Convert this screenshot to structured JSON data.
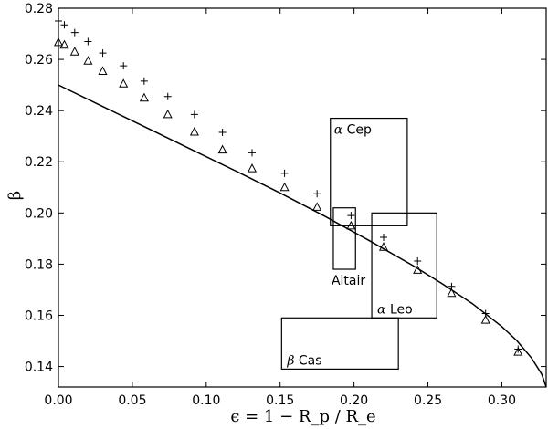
{
  "chart_data": {
    "type": "scatter",
    "title": "",
    "xlabel": "ϵ = 1 − R_p / R_e",
    "ylabel": "β",
    "xlim": [
      0.0,
      0.33
    ],
    "ylim": [
      0.132,
      0.28
    ],
    "x_ticks": [
      0.0,
      0.05,
      0.1,
      0.15,
      0.2,
      0.25,
      0.3
    ],
    "x_tick_labels": [
      "0.00",
      "0.05",
      "0.10",
      "0.15",
      "0.20",
      "0.25",
      "0.30"
    ],
    "y_ticks": [
      0.14,
      0.16,
      0.18,
      0.2,
      0.22,
      0.24,
      0.26,
      0.28
    ],
    "y_tick_labels": [
      "0.14",
      "0.16",
      "0.18",
      "0.20",
      "0.22",
      "0.24",
      "0.26",
      "0.28"
    ],
    "grid": false,
    "series": [
      {
        "marker": "line",
        "color": "#000000",
        "x": [
          0.0,
          0.03,
          0.06,
          0.09,
          0.12,
          0.15,
          0.18,
          0.21,
          0.24,
          0.26,
          0.28,
          0.3,
          0.31,
          0.32,
          0.327,
          0.33
        ],
        "y": [
          0.25,
          0.2416,
          0.2332,
          0.2248,
          0.2164,
          0.2078,
          0.1988,
          0.1893,
          0.1794,
          0.1722,
          0.1646,
          0.1556,
          0.1502,
          0.1434,
          0.137,
          0.132
        ]
      },
      {
        "marker": "triangle",
        "color": "#000000",
        "x": [
          0.0,
          0.004,
          0.011,
          0.02,
          0.03,
          0.044,
          0.058,
          0.074,
          0.092,
          0.111,
          0.131,
          0.153,
          0.175,
          0.198,
          0.22,
          0.243,
          0.266,
          0.289,
          0.311
        ],
        "y": [
          0.2665,
          0.2655,
          0.2628,
          0.2592,
          0.2552,
          0.2503,
          0.2448,
          0.2383,
          0.2315,
          0.2245,
          0.2172,
          0.2098,
          0.2021,
          0.1948,
          0.1865,
          0.1775,
          0.1685,
          0.158,
          0.1455
        ]
      },
      {
        "marker": "plus",
        "color": "#000000",
        "x": [
          0.0,
          0.004,
          0.011,
          0.02,
          0.03,
          0.044,
          0.058,
          0.074,
          0.092,
          0.111,
          0.131,
          0.153,
          0.175,
          0.198,
          0.22,
          0.243,
          0.266,
          0.289,
          0.311
        ],
        "y": [
          0.275,
          0.2735,
          0.2705,
          0.267,
          0.2625,
          0.2575,
          0.2515,
          0.2455,
          0.2385,
          0.2315,
          0.2235,
          0.2155,
          0.2075,
          0.199,
          0.1905,
          0.1812,
          0.1713,
          0.1607,
          0.1468
        ]
      }
    ],
    "boxes": [
      {
        "label": "Cep",
        "prefix": "α",
        "x0": 0.184,
        "x1": 0.236,
        "y0": 0.195,
        "y1": 0.237,
        "label_corner": "top-left"
      },
      {
        "label": "Altair",
        "prefix": "",
        "x0": 0.186,
        "x1": 0.201,
        "y0": 0.178,
        "y1": 0.202,
        "label_corner": "below"
      },
      {
        "label": "Leo",
        "prefix": "α",
        "x0": 0.212,
        "x1": 0.256,
        "y0": 0.159,
        "y1": 0.2,
        "label_corner": "bottom-left"
      },
      {
        "label": "Cas",
        "prefix": "β",
        "x0": 0.151,
        "x1": 0.23,
        "y0": 0.139,
        "y1": 0.159,
        "label_corner": "bottom-left"
      }
    ]
  }
}
